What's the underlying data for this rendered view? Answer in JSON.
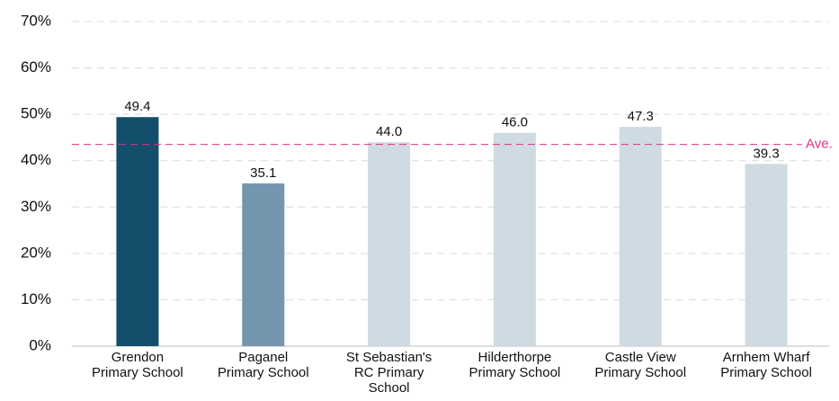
{
  "chart_data": {
    "type": "bar",
    "categories": [
      "Grendon Primary School",
      "Paganel Primary School",
      "St Sebastian's RC Primary School",
      "Hilderthorpe Primary School",
      "Castle View Primary School",
      "Arnhem Wharf Primary School"
    ],
    "values": [
      49.4,
      35.1,
      44.0,
      46.0,
      47.3,
      39.3
    ],
    "value_labels": [
      "49.4",
      "35.1",
      "44.0",
      "46.0",
      "47.3",
      "39.3"
    ],
    "colors": [
      "#134f6b",
      "#7396ae",
      "#cfdbe3",
      "#cfdbe3",
      "#cfdbe3",
      "#cfdbe3"
    ],
    "ylim": [
      0,
      70
    ],
    "yticks": [
      {
        "value": 0,
        "label": "0%"
      },
      {
        "value": 10,
        "label": "10%"
      },
      {
        "value": 20,
        "label": "20%"
      },
      {
        "value": 30,
        "label": "30%"
      },
      {
        "value": 40,
        "label": "40%"
      },
      {
        "value": 50,
        "label": "50%"
      },
      {
        "value": 60,
        "label": "60%"
      },
      {
        "value": 70,
        "label": "70%"
      }
    ],
    "grid": true,
    "reference_line": {
      "label": "Ave.",
      "value": 43.5,
      "color": "#e0308a"
    }
  }
}
